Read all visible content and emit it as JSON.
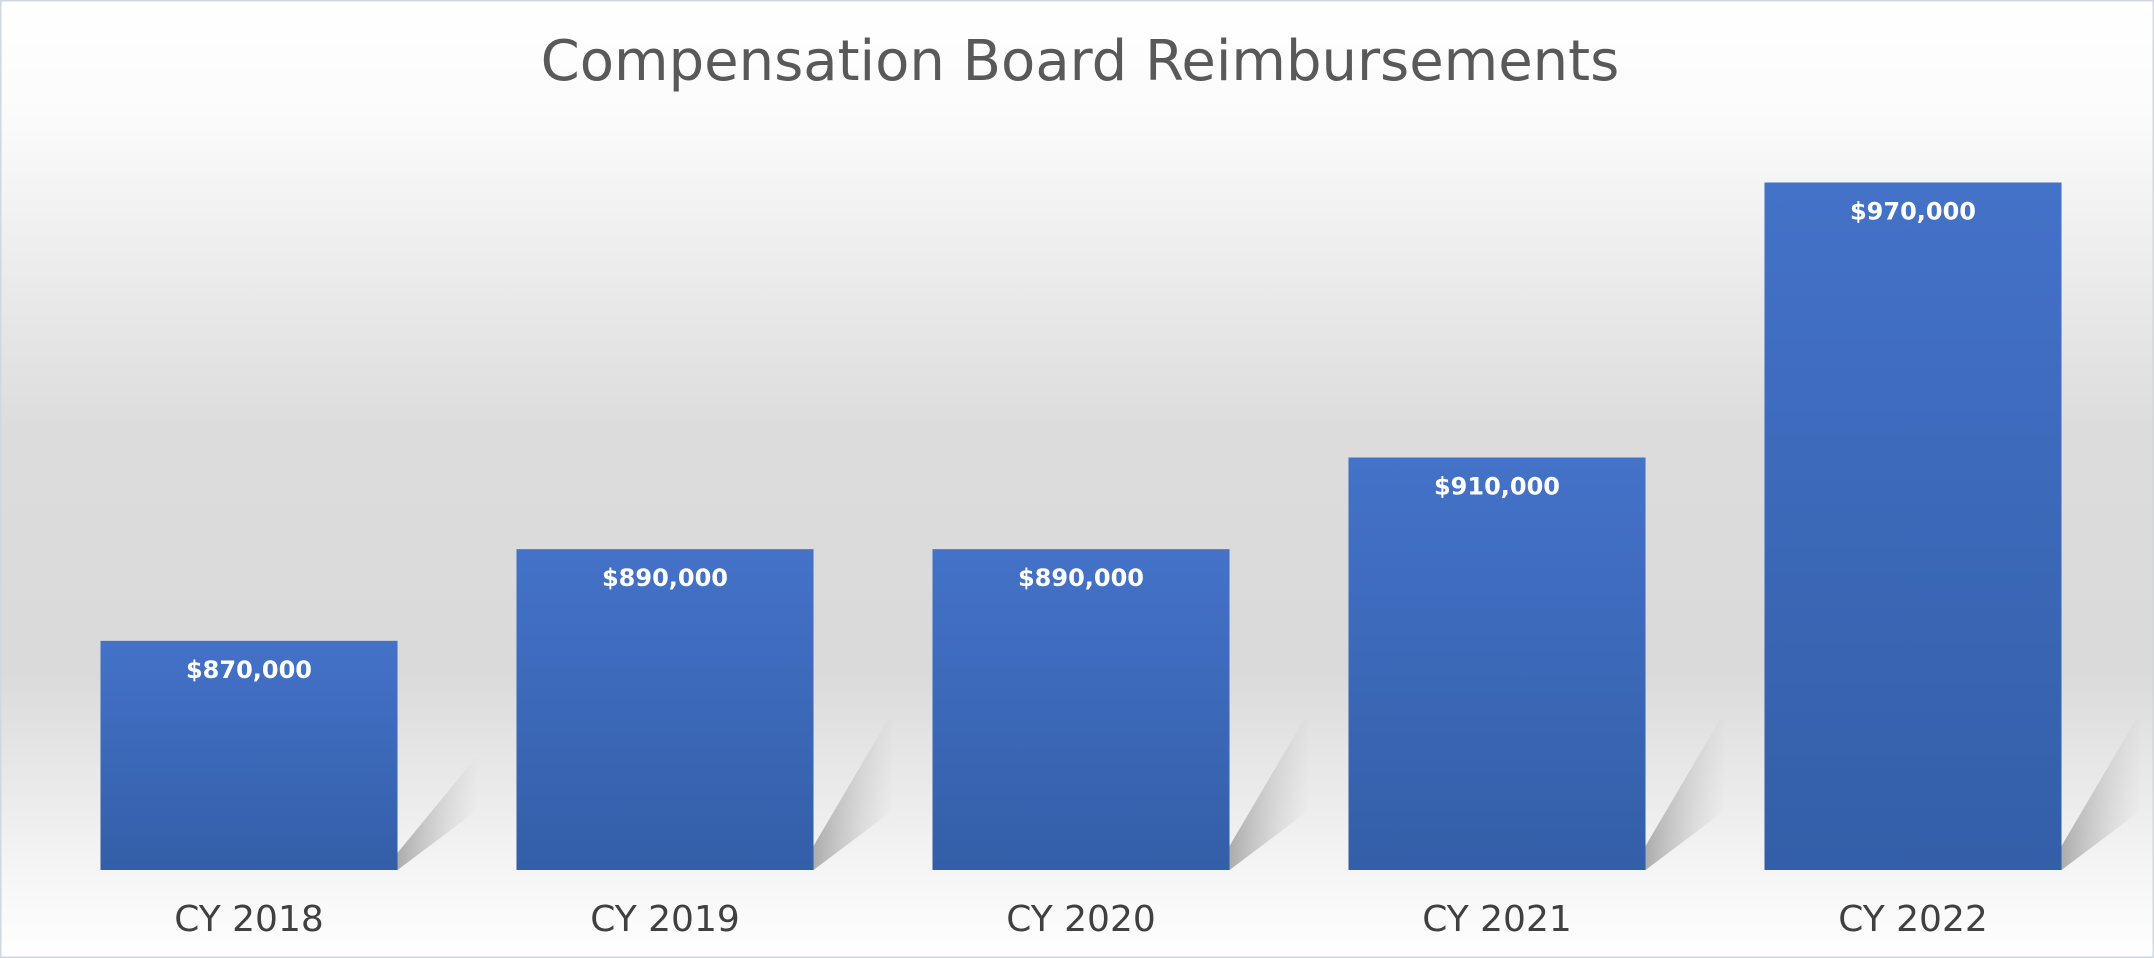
{
  "chart_data": {
    "type": "bar",
    "title": "Compensation Board Reimbursements",
    "categories": [
      "CY 2018",
      "CY 2019",
      "CY 2020",
      "CY 2021",
      "CY 2022"
    ],
    "values": [
      870000,
      890000,
      890000,
      910000,
      970000
    ],
    "value_labels": [
      "$870,000",
      "$890,000",
      "$890,000",
      "$910,000",
      "$970,000"
    ],
    "color": "#4472c4",
    "ylim": [
      820000,
      1000000
    ]
  }
}
